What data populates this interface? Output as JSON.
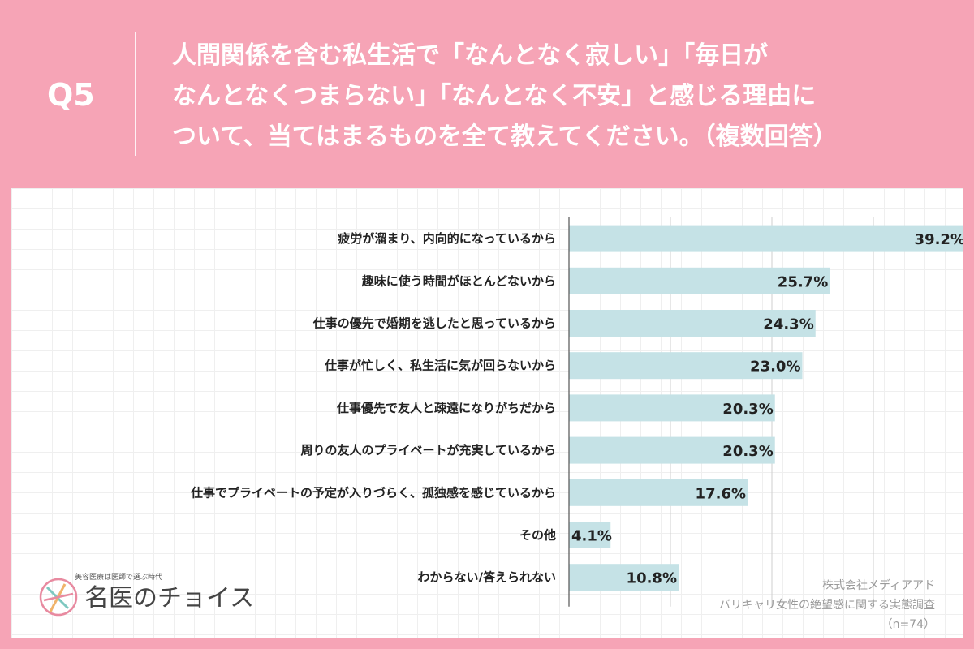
{
  "header": {
    "q_label": "Q5",
    "question_lines": [
      "人間関係を含む私生活で「なんとなく寂しい」「毎日が",
      "なんとなくつまらない」「なんとなく不安」と感じる理由に",
      "ついて、当てはまるものを全て教えてください。（複数回答）"
    ]
  },
  "chart_data": {
    "type": "bar",
    "orientation": "horizontal",
    "categories": [
      "疲労が溜まり、内向的になっているから",
      "趣味に使う時間がほとんどないから",
      "仕事の優先で婚期を逃したと思っているから",
      "仕事が忙しく、私生活に気が回らないから",
      "仕事優先で友人と疎遠になりがちだから",
      "周りの友人のプライベートが充実しているから",
      "仕事でプライベートの予定が入りづらく、孤独感を感じているから",
      "その他",
      "わからない/答えられない"
    ],
    "values": [
      39.2,
      25.7,
      24.3,
      23.0,
      20.3,
      20.3,
      17.6,
      4.1,
      10.8
    ],
    "value_labels": [
      "39.2%",
      "25.7%",
      "24.3%",
      "23.0%",
      "20.3%",
      "20.3%",
      "17.6%",
      "4.1%",
      "10.8%"
    ],
    "xlim": [
      0,
      40
    ],
    "grid": true,
    "bar_color": "#c5e2e6"
  },
  "logo": {
    "tagline": "美容医療は医師で選ぶ時代",
    "name": "名医のチョイス"
  },
  "source": {
    "company": "株式会社メディアアド",
    "survey": "バリキャリ女性の絶望感に関する実態調査",
    "sample": "（n=74）"
  },
  "colors": {
    "background": "#f6a4b6",
    "panel": "#ffffff",
    "bar": "#c5e2e6"
  }
}
